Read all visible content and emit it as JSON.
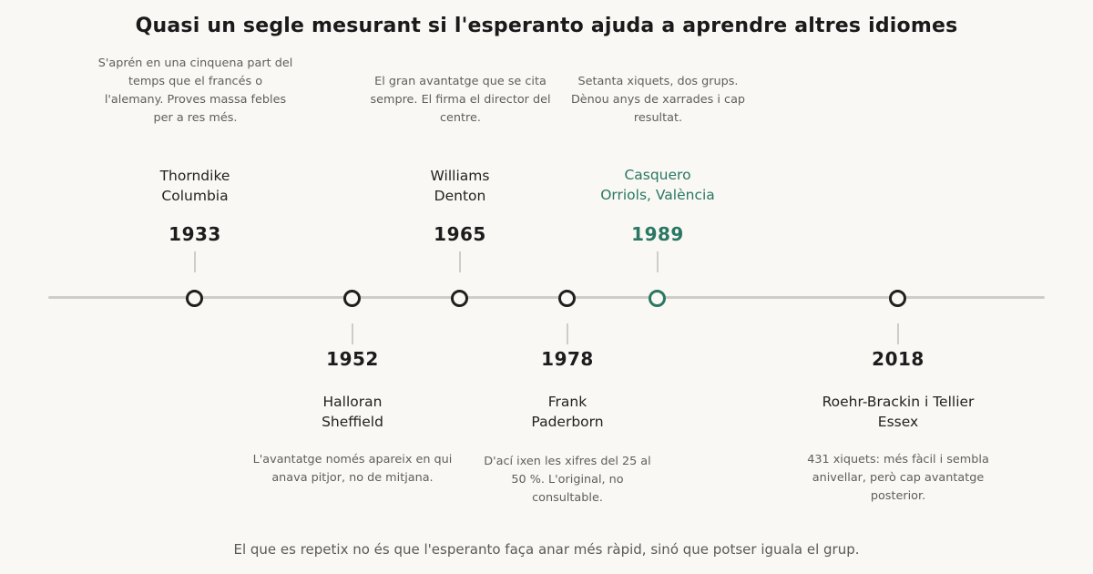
{
  "title": "Quasi un segle mesurant si l'esperanto ajuda a aprendre altres idiomes",
  "footer": "El que es repetix no és que l'esperanto faça anar més ràpid, sinó que potser iguala el grup.",
  "highlight_color": "#2a7763",
  "events": [
    {
      "year": "1933",
      "author": "Thorndike",
      "place": "Columbia",
      "note": "S'aprén en una cinquena part del temps que el francés o l'alemany. Proves massa febles per a res més.",
      "side": "above"
    },
    {
      "year": "1952",
      "author": "Halloran",
      "place": "Sheffield",
      "note": "L'avantatge només apareix en qui anava pitjor, no de mitjana.",
      "side": "below"
    },
    {
      "year": "1965",
      "author": "Williams",
      "place": "Denton",
      "note": "El gran avantatge que se cita sempre. El firma el director del centre.",
      "side": "above"
    },
    {
      "year": "1978",
      "author": "Frank",
      "place": "Paderborn",
      "note": "D'ací ixen les xifres del 25 al 50 %. L'original, no consultable.",
      "side": "below"
    },
    {
      "year": "1989",
      "author": "Casquero",
      "place": "Orriols, València",
      "note": "Setanta xiquets, dos grups. Dènou anys de xarrades i cap resultat.",
      "side": "above",
      "highlight": true
    },
    {
      "year": "2018",
      "author": "Roehr-Brackin i Tellier",
      "place": "Essex",
      "note": "431 xiquets: més fàcil i sembla anivellar, però cap avantatge posterior.",
      "side": "below"
    }
  ]
}
